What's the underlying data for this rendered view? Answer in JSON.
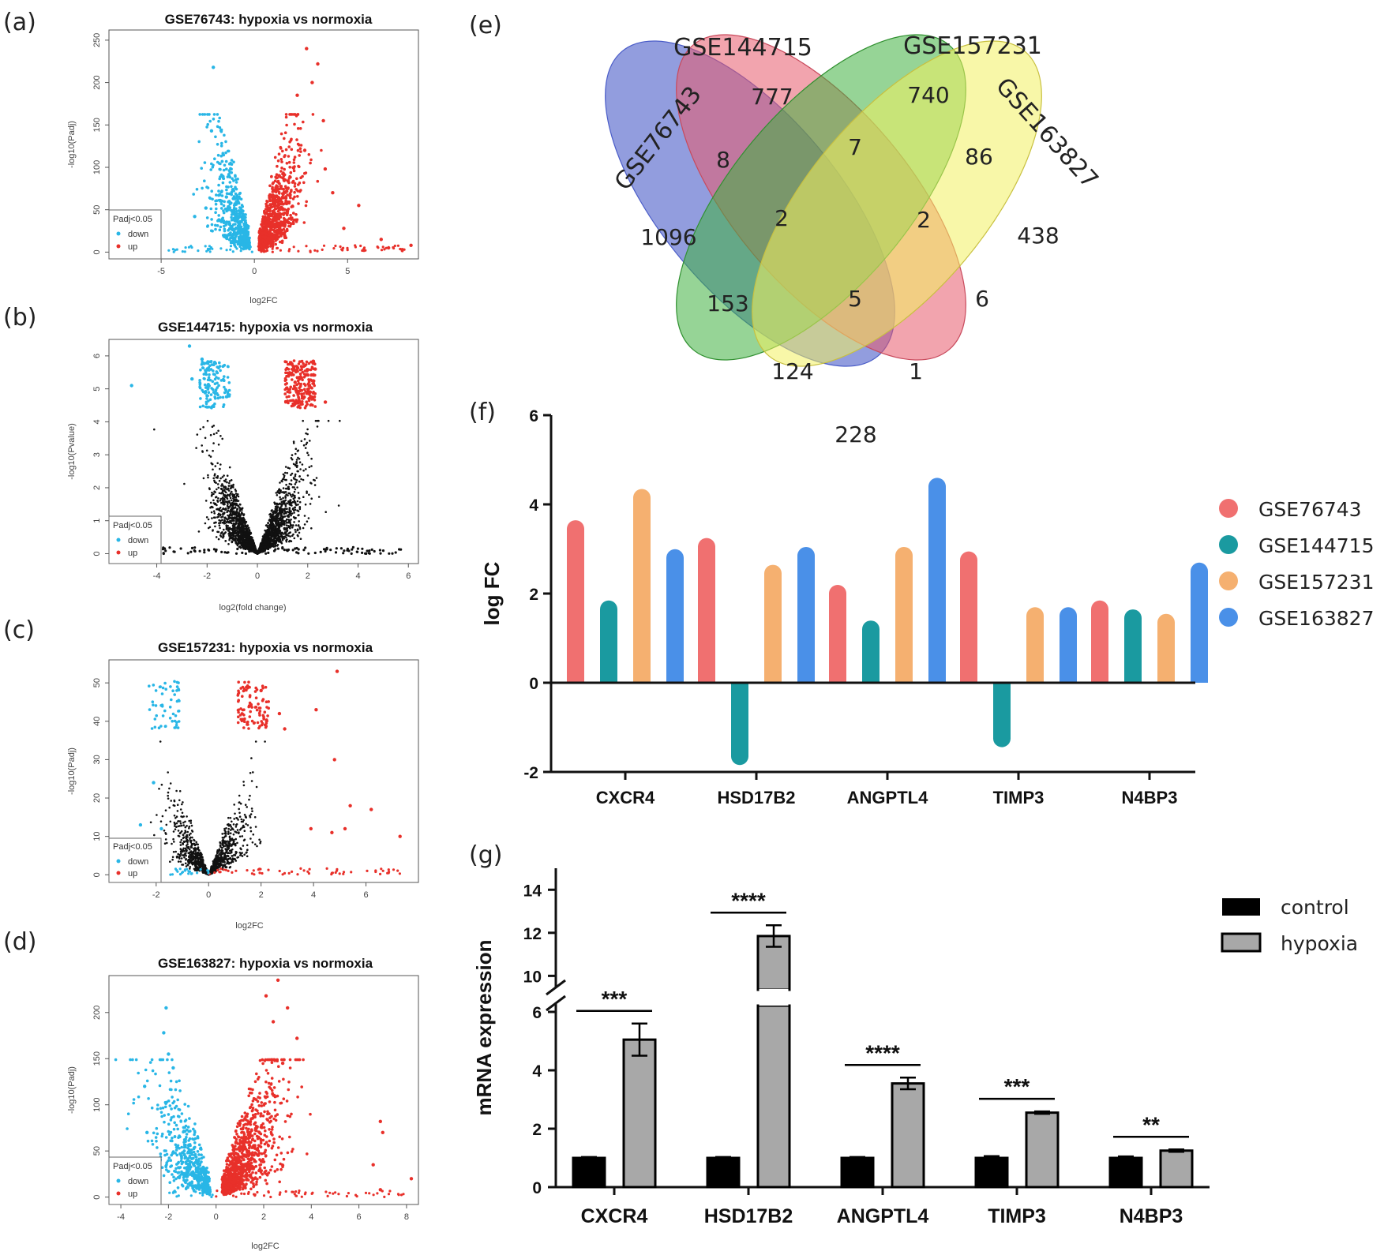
{
  "panels": {
    "a": "(a)",
    "b": "(b)",
    "c": "(c)",
    "d": "(d)",
    "e": "(e)",
    "f": "(f)",
    "g": "(g)"
  },
  "chart_data": [
    {
      "id": "a",
      "type": "scatter",
      "title": "GSE76743: hypoxia vs normoxia",
      "xlabel": "log2FC",
      "ylabel": "-log10(Padj)",
      "xlim": [
        -7.8,
        8.8
      ],
      "ylim": [
        -8,
        262
      ],
      "xticks": [
        -5,
        0,
        5
      ],
      "yticks": [
        0,
        50,
        100,
        150,
        200,
        250
      ],
      "legend": {
        "title": "Padj<0.05",
        "items": [
          {
            "label": "down",
            "color": "#29b6e6"
          },
          {
            "label": "up",
            "color": "#e8302a"
          }
        ]
      },
      "spread": 1.0,
      "density": 1400,
      "has_ns": false,
      "outliers_down": [
        [
          -2.2,
          218
        ],
        [
          -2.3,
          143
        ],
        [
          -1.5,
          65
        ],
        [
          -1.9,
          38
        ],
        [
          -3.2,
          42
        ],
        [
          -2.6,
          52
        ]
      ],
      "outliers_up": [
        [
          2.8,
          240
        ],
        [
          3.4,
          222
        ],
        [
          3.1,
          200
        ],
        [
          2.3,
          185
        ],
        [
          3.7,
          155
        ],
        [
          2.7,
          120
        ],
        [
          4.2,
          70
        ],
        [
          5.6,
          55
        ],
        [
          6.8,
          15
        ],
        [
          8.4,
          8
        ],
        [
          7.2,
          5
        ],
        [
          4.8,
          28
        ],
        [
          3.8,
          98
        ]
      ]
    },
    {
      "id": "b",
      "type": "scatter",
      "title": "GSE144715: hypoxia vs normoxia",
      "xlabel": "log2(fold change)",
      "ylabel": "-log10(Pvalue)",
      "xlim": [
        -5.9,
        6.4
      ],
      "ylim": [
        -0.3,
        6.5
      ],
      "xticks": [
        -4,
        -2,
        0,
        2,
        4,
        6
      ],
      "yticks": [
        0,
        1,
        2,
        3,
        4,
        5,
        6
      ],
      "legend": {
        "title": "Padj<0.05",
        "items": [
          {
            "label": "down",
            "color": "#29b6e6"
          },
          {
            "label": "up",
            "color": "#e8302a"
          }
        ]
      },
      "spread": 0.9,
      "density": 2600,
      "has_ns": true,
      "outliers_down": [
        [
          -5.0,
          5.1
        ],
        [
          -2.7,
          6.3
        ],
        [
          -2.2,
          5.9
        ],
        [
          -1.7,
          5.8
        ],
        [
          -2.6,
          5.3
        ]
      ],
      "outliers_up": [
        [
          2.3,
          5.6
        ],
        [
          2.7,
          4.6
        ],
        [
          1.5,
          5.2
        ],
        [
          2.1,
          4.9
        ]
      ]
    },
    {
      "id": "c",
      "type": "scatter",
      "title": "GSE157231: hypoxia vs normoxia",
      "xlabel": "log2FC",
      "ylabel": "-log10(Padj)",
      "xlim": [
        -3.8,
        8.0
      ],
      "ylim": [
        -2,
        56
      ],
      "xticks": [
        -2,
        0,
        2,
        4,
        6
      ],
      "yticks": [
        0,
        10,
        20,
        30,
        40,
        50
      ],
      "legend": {
        "title": "Padj<0.05",
        "items": [
          {
            "label": "down",
            "color": "#29b6e6"
          },
          {
            "label": "up",
            "color": "#e8302a"
          }
        ]
      },
      "spread": 0.75,
      "density": 1100,
      "has_ns": true,
      "outliers_down": [
        [
          -2.1,
          24
        ],
        [
          -2.6,
          13
        ],
        [
          -1.8,
          12
        ]
      ],
      "outliers_up": [
        [
          4.9,
          53
        ],
        [
          2.0,
          48
        ],
        [
          4.1,
          43
        ],
        [
          2.7,
          42
        ],
        [
          2.9,
          38
        ],
        [
          4.8,
          30
        ],
        [
          6.2,
          17
        ],
        [
          7.3,
          10
        ],
        [
          5.4,
          18
        ],
        [
          4.7,
          11
        ],
        [
          3.9,
          12
        ],
        [
          5.2,
          12
        ]
      ]
    },
    {
      "id": "d",
      "type": "scatter",
      "title": "GSE163827: hypoxia vs normoxia",
      "xlabel": "log2FC",
      "ylabel": "-log10(Padj)",
      "xlim": [
        -4.5,
        8.5
      ],
      "ylim": [
        -8,
        240
      ],
      "xticks": [
        -4,
        -2,
        0,
        2,
        4,
        6,
        8
      ],
      "yticks": [
        0,
        50,
        100,
        150,
        200
      ],
      "legend": {
        "title": "Padj<0.05",
        "items": [
          {
            "label": "down",
            "color": "#29b6e6"
          },
          {
            "label": "up",
            "color": "#e8302a"
          }
        ]
      },
      "spread": 1.2,
      "density": 1500,
      "has_ns": false,
      "outliers_down": [
        [
          -2.1,
          205
        ],
        [
          -2.2,
          178
        ],
        [
          -2.0,
          155
        ],
        [
          -3.0,
          120
        ],
        [
          -2.9,
          70
        ],
        [
          -1.8,
          140
        ]
      ],
      "outliers_up": [
        [
          2.6,
          235
        ],
        [
          2.1,
          218
        ],
        [
          3.0,
          205
        ],
        [
          2.4,
          190
        ],
        [
          3.4,
          172
        ],
        [
          2.8,
          145
        ],
        [
          6.9,
          82
        ],
        [
          7.0,
          70
        ],
        [
          6.6,
          35
        ],
        [
          8.2,
          20
        ],
        [
          6.9,
          8
        ]
      ]
    },
    {
      "id": "e",
      "type": "venn",
      "sets": [
        "GSE76743",
        "GSE144715",
        "GSE157231",
        "GSE163827"
      ],
      "regions": [
        1096,
        777,
        740,
        438,
        8,
        7,
        86,
        2,
        2,
        153,
        5,
        6,
        124,
        1,
        228
      ]
    },
    {
      "id": "f",
      "type": "bar",
      "ylabel": "log FC",
      "ylim": [
        -2,
        6
      ],
      "yticks": [
        -2,
        0,
        2,
        4,
        6
      ],
      "categories": [
        "CXCR4",
        "HSD17B2",
        "ANGPTL4",
        "TIMP3",
        "N4BP3"
      ],
      "series": [
        {
          "name": "GSE76743",
          "color": "#f07070",
          "values": [
            3.45,
            3.05,
            2.0,
            2.75,
            1.65
          ]
        },
        {
          "name": "GSE144715",
          "color": "#1a9aa0",
          "values": [
            1.65,
            -1.65,
            1.2,
            -1.25,
            1.45
          ]
        },
        {
          "name": "GSE157231",
          "color": "#f5b070",
          "values": [
            4.15,
            2.45,
            2.85,
            1.5,
            1.35
          ]
        },
        {
          "name": "GSE163827",
          "color": "#4a90e8",
          "values": [
            2.8,
            2.85,
            4.4,
            1.5,
            2.5
          ]
        }
      ]
    },
    {
      "id": "g",
      "type": "bar",
      "ylabel": "mRNA expression",
      "ylim_lower": [
        0,
        6
      ],
      "ylim_upper": [
        9.5,
        15
      ],
      "yticks_lower": [
        0,
        2,
        4,
        6
      ],
      "yticks_upper": [
        10,
        12,
        14
      ],
      "categories": [
        "CXCR4",
        "HSD17B2",
        "ANGPTL4",
        "TIMP3",
        "N4BP3"
      ],
      "series": [
        {
          "name": "control",
          "color": "#000000",
          "values": [
            1.0,
            1.0,
            1.0,
            1.0,
            1.0
          ],
          "errors": [
            0.03,
            0.03,
            0.03,
            0.06,
            0.05
          ]
        },
        {
          "name": "hypoxia",
          "color": "#a8a8a8",
          "values": [
            5.05,
            11.85,
            3.55,
            2.55,
            1.25
          ],
          "errors": [
            0.55,
            0.5,
            0.2,
            0.04,
            0.04
          ]
        }
      ],
      "significance": [
        "***",
        "****",
        "****",
        "***",
        "**"
      ]
    }
  ]
}
